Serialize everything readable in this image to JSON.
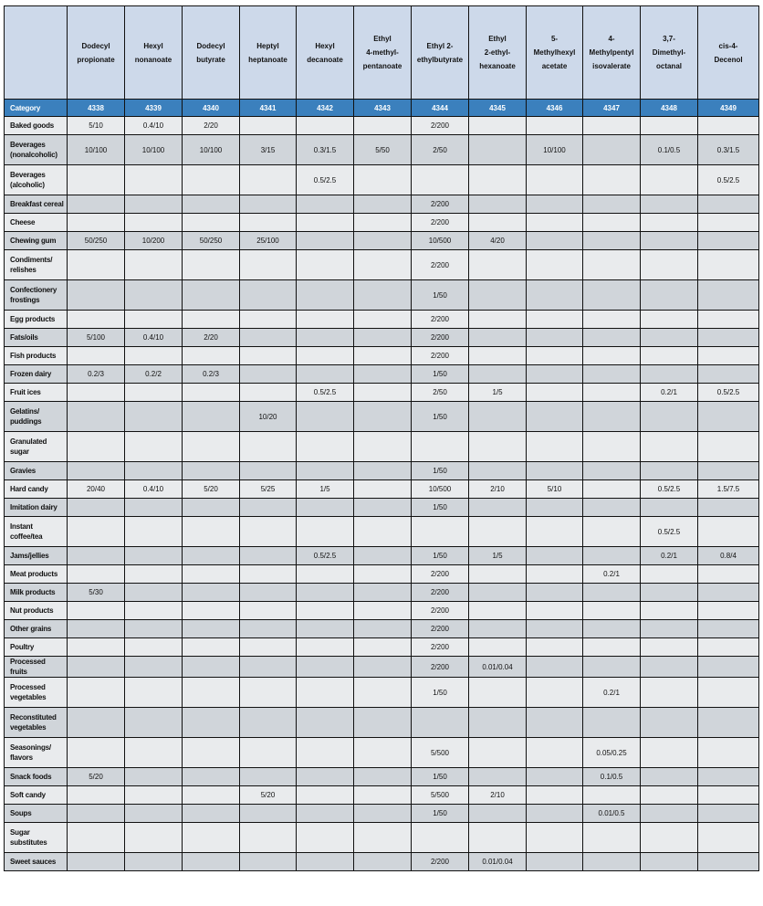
{
  "table": {
    "columns": [
      {
        "name": "Dodecyl\npropionate",
        "id": "4338"
      },
      {
        "name": "Hexyl\nnonanoate",
        "id": "4339"
      },
      {
        "name": "Dodecyl\nbutyrate",
        "id": "4340"
      },
      {
        "name": "Heptyl\nheptanoate",
        "id": "4341"
      },
      {
        "name": "Hexyl\ndecanoate",
        "id": "4342"
      },
      {
        "name": "Ethyl\n4-methyl-\npentanoate",
        "id": "4343"
      },
      {
        "name": "Ethyl 2-\nethylbutyrate",
        "id": "4344"
      },
      {
        "name": "Ethyl\n2-ethyl-\nhexanoate",
        "id": "4345"
      },
      {
        "name": "5-\nMethylhexyl\nacetate",
        "id": "4346"
      },
      {
        "name": "4-\nMethylpentyl\nisovalerate",
        "id": "4347"
      },
      {
        "name": "3,7-\nDimethyl-\noctanal",
        "id": "4348"
      },
      {
        "name": "cis-4-\nDecenol",
        "id": "4349"
      }
    ],
    "category_label": "Category",
    "rows": [
      {
        "category": "Baked goods",
        "values": [
          "5/10",
          "0.4/10",
          "2/20",
          "",
          "",
          "",
          "2/200",
          "",
          "",
          "",
          "",
          ""
        ]
      },
      {
        "category": "Beverages\n(nonalcoholic)",
        "values": [
          "10/100",
          "10/100",
          "10/100",
          "3/15",
          "0.3/1.5",
          "5/50",
          "2/50",
          "",
          "10/100",
          "",
          "0.1/0.5",
          "0.3/1.5"
        ]
      },
      {
        "category": "Beverages\n(alcoholic)",
        "values": [
          "",
          "",
          "",
          "",
          "0.5/2.5",
          "",
          "",
          "",
          "",
          "",
          "",
          "0.5/2.5"
        ]
      },
      {
        "category": "Breakfast cereal",
        "values": [
          "",
          "",
          "",
          "",
          "",
          "",
          "2/200",
          "",
          "",
          "",
          "",
          ""
        ]
      },
      {
        "category": "Cheese",
        "values": [
          "",
          "",
          "",
          "",
          "",
          "",
          "2/200",
          "",
          "",
          "",
          "",
          ""
        ]
      },
      {
        "category": "Chewing gum",
        "values": [
          "50/250",
          "10/200",
          "50/250",
          "25/100",
          "",
          "",
          "10/500",
          "4/20",
          "",
          "",
          "",
          ""
        ]
      },
      {
        "category": "Condiments/\nrelishes",
        "values": [
          "",
          "",
          "",
          "",
          "",
          "",
          "2/200",
          "",
          "",
          "",
          "",
          ""
        ]
      },
      {
        "category": "Confectionery\nfrostings",
        "values": [
          "",
          "",
          "",
          "",
          "",
          "",
          "1/50",
          "",
          "",
          "",
          "",
          ""
        ]
      },
      {
        "category": "Egg products",
        "values": [
          "",
          "",
          "",
          "",
          "",
          "",
          "2/200",
          "",
          "",
          "",
          "",
          ""
        ]
      },
      {
        "category": "Fats/oils",
        "values": [
          "5/100",
          "0.4/10",
          "2/20",
          "",
          "",
          "",
          "2/200",
          "",
          "",
          "",
          "",
          ""
        ]
      },
      {
        "category": "Fish products",
        "values": [
          "",
          "",
          "",
          "",
          "",
          "",
          "2/200",
          "",
          "",
          "",
          "",
          ""
        ]
      },
      {
        "category": "Frozen dairy",
        "values": [
          "0.2/3",
          "0.2/2",
          "0.2/3",
          "",
          "",
          "",
          "1/50",
          "",
          "",
          "",
          "",
          ""
        ]
      },
      {
        "category": "Fruit ices",
        "values": [
          "",
          "",
          "",
          "",
          "0.5/2.5",
          "",
          "2/50",
          "1/5",
          "",
          "",
          "0.2/1",
          "0.5/2.5"
        ]
      },
      {
        "category": "Gelatins/\npuddings",
        "values": [
          "",
          "",
          "",
          "10/20",
          "",
          "",
          "1/50",
          "",
          "",
          "",
          "",
          ""
        ]
      },
      {
        "category": "Granulated\nsugar",
        "values": [
          "",
          "",
          "",
          "",
          "",
          "",
          "",
          "",
          "",
          "",
          "",
          ""
        ]
      },
      {
        "category": "Gravies",
        "values": [
          "",
          "",
          "",
          "",
          "",
          "",
          "1/50",
          "",
          "",
          "",
          "",
          ""
        ]
      },
      {
        "category": "Hard candy",
        "values": [
          "20/40",
          "0.4/10",
          "5/20",
          "5/25",
          "1/5",
          "",
          "10/500",
          "2/10",
          "5/10",
          "",
          "0.5/2.5",
          "1.5/7.5"
        ]
      },
      {
        "category": "Imitation dairy",
        "values": [
          "",
          "",
          "",
          "",
          "",
          "",
          "1/50",
          "",
          "",
          "",
          "",
          ""
        ]
      },
      {
        "category": "Instant\ncoffee/tea",
        "values": [
          "",
          "",
          "",
          "",
          "",
          "",
          "",
          "",
          "",
          "",
          "0.5/2.5",
          ""
        ]
      },
      {
        "category": "Jams/jellies",
        "values": [
          "",
          "",
          "",
          "",
          "0.5/2.5",
          "",
          "1/50",
          "1/5",
          "",
          "",
          "0.2/1",
          "0.8/4"
        ]
      },
      {
        "category": "Meat products",
        "values": [
          "",
          "",
          "",
          "",
          "",
          "",
          "2/200",
          "",
          "",
          "0.2/1",
          "",
          ""
        ]
      },
      {
        "category": "Milk products",
        "values": [
          "5/30",
          "",
          "",
          "",
          "",
          "",
          "2/200",
          "",
          "",
          "",
          "",
          ""
        ]
      },
      {
        "category": "Nut products",
        "values": [
          "",
          "",
          "",
          "",
          "",
          "",
          "2/200",
          "",
          "",
          "",
          "",
          ""
        ]
      },
      {
        "category": "Other grains",
        "values": [
          "",
          "",
          "",
          "",
          "",
          "",
          "2/200",
          "",
          "",
          "",
          "",
          ""
        ]
      },
      {
        "category": "Poultry",
        "values": [
          "",
          "",
          "",
          "",
          "",
          "",
          "2/200",
          "",
          "",
          "",
          "",
          ""
        ]
      },
      {
        "category": "Processed fruits",
        "values": [
          "",
          "",
          "",
          "",
          "",
          "",
          "2/200",
          "0.01/0.04",
          "",
          "",
          "",
          ""
        ]
      },
      {
        "category": "Processed\nvegetables",
        "values": [
          "",
          "",
          "",
          "",
          "",
          "",
          "1/50",
          "",
          "",
          "0.2/1",
          "",
          ""
        ]
      },
      {
        "category": "Reconstituted\nvegetables",
        "values": [
          "",
          "",
          "",
          "",
          "",
          "",
          "",
          "",
          "",
          "",
          "",
          ""
        ]
      },
      {
        "category": "Seasonings/\nflavors",
        "values": [
          "",
          "",
          "",
          "",
          "",
          "",
          "5/500",
          "",
          "",
          "0.05/0.25",
          "",
          ""
        ]
      },
      {
        "category": "Snack foods",
        "values": [
          "5/20",
          "",
          "",
          "",
          "",
          "",
          "1/50",
          "",
          "",
          "0.1/0.5",
          "",
          ""
        ]
      },
      {
        "category": "Soft candy",
        "values": [
          "",
          "",
          "",
          "5/20",
          "",
          "",
          "5/500",
          "2/10",
          "",
          "",
          "",
          ""
        ]
      },
      {
        "category": "Soups",
        "values": [
          "",
          "",
          "",
          "",
          "",
          "",
          "1/50",
          "",
          "",
          "0.01/0.5",
          "",
          ""
        ]
      },
      {
        "category": "Sugar\nsubstitutes",
        "values": [
          "",
          "",
          "",
          "",
          "",
          "",
          "",
          "",
          "",
          "",
          "",
          ""
        ]
      },
      {
        "category": "Sweet sauces",
        "values": [
          "",
          "",
          "",
          "",
          "",
          "",
          "2/200",
          "0.01/0.04",
          "",
          "",
          "",
          ""
        ]
      }
    ]
  },
  "colors": {
    "header_bg": "#cdd9ea",
    "id_row_bg": "#3b80bd",
    "row_light": "#e9ebed",
    "row_dark": "#d0d5da"
  }
}
